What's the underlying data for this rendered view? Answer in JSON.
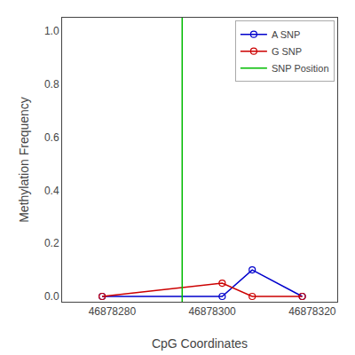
{
  "chart_data": {
    "type": "line",
    "xlabel": "CpG Coordinates",
    "ylabel": "Methylation Frequency",
    "x": [
      46878278,
      46878302,
      46878308,
      46878318
    ],
    "series": [
      {
        "name": "A SNP",
        "color": "#0000cc",
        "marker": "circle-open",
        "values": [
          0.0,
          0.0,
          0.1,
          0.0
        ]
      },
      {
        "name": "G SNP",
        "color": "#cc0000",
        "marker": "circle-open",
        "values": [
          0.0,
          0.05,
          0.0,
          0.0
        ]
      },
      {
        "name": "SNP Position",
        "color": "#00bb00",
        "type": "vline",
        "x": 46878294
      }
    ],
    "xlim": [
      46878270,
      46878325
    ],
    "xticks": [
      46878280,
      46878300,
      46878320
    ],
    "ylim": [
      -0.02,
      1.05
    ],
    "yticks": [
      {
        "value": 0.0,
        "label": "0.0"
      },
      0.2,
      0.4,
      0.6,
      0.8,
      {
        "value": 1.0,
        "label": "1.0"
      }
    ],
    "grid": false,
    "legend": "upper right"
  }
}
